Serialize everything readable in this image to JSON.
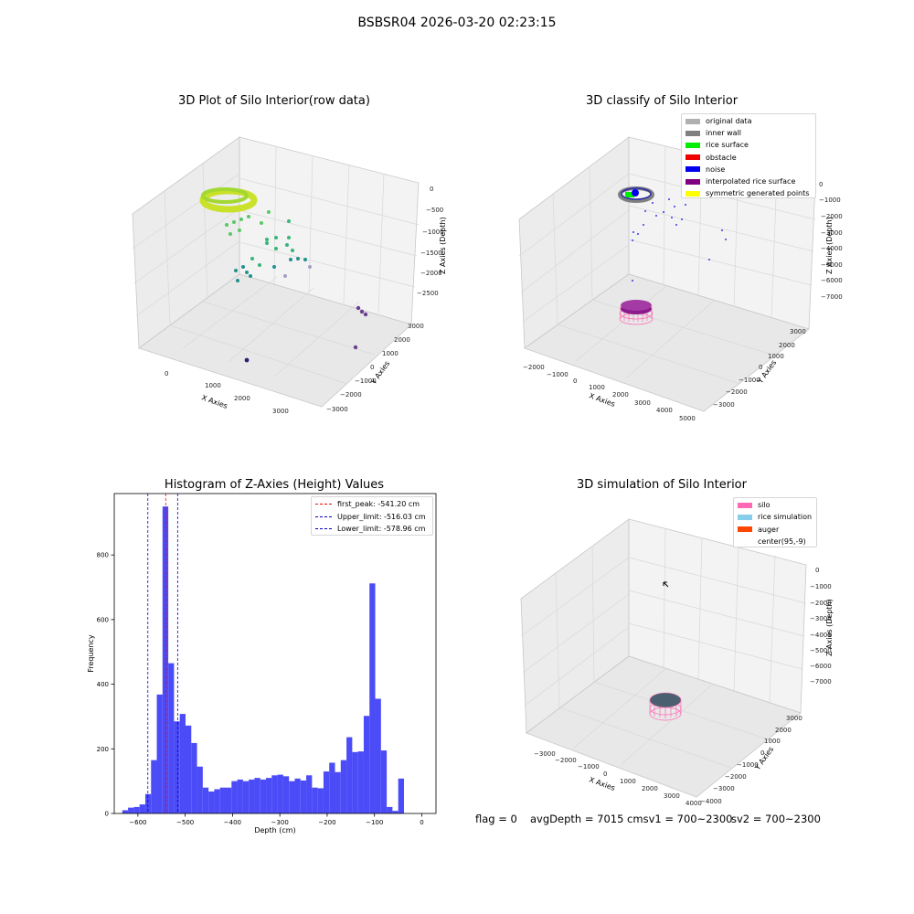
{
  "suptitle": "BSBSR04 2026-03-20 02:23:15",
  "status": {
    "flag": "flag = 0",
    "avg": "avgDepth = 7015 cmsv1 = 700~2300",
    "sv2": "sv2 = 700~2300"
  },
  "colors": {
    "hist_bar": "#4b4bf7",
    "first_peak": "#ff0000",
    "limit_lines": "#0000cc",
    "pane": "#f2f2f2"
  },
  "chart_data": [
    {
      "type": "scatter",
      "title": "3D Plot of Silo Interior(row data)",
      "xlabel": "X Axies",
      "ylabel": "Y Axies",
      "zlabel": "Z Axies (Depth)",
      "xticks": [
        "0",
        "1000",
        "2000",
        "3000"
      ],
      "yticks": [
        "3000",
        "2000",
        "1000",
        "0",
        "−1000",
        "−2000",
        "−3000"
      ],
      "zticks": [
        "0",
        "−500",
        "−1000",
        "−1500",
        "−2000",
        "−2500"
      ],
      "colormap": "viridis",
      "grid": true
    },
    {
      "type": "scatter",
      "title": "3D classify of Silo Interior",
      "xlabel": "X Axies",
      "ylabel": "Y Axies",
      "zlabel": "Z Axies (Depth)",
      "xticks": [
        "−2000",
        "−1000",
        "0",
        "1000",
        "2000",
        "3000",
        "4000",
        "5000"
      ],
      "yticks": [
        "3000",
        "2000",
        "1000",
        "0",
        "−1000",
        "−2000",
        "−3000"
      ],
      "zticks": [
        "0",
        "−1000",
        "−2000",
        "−3000",
        "−4000",
        "−5000",
        "−6000",
        "−7000"
      ],
      "legend_position": "top-right",
      "legend": [
        {
          "label": "original data",
          "color": "#b0b0b0"
        },
        {
          "label": "inner wall",
          "color": "#808080"
        },
        {
          "label": "rice surface",
          "color": "#00ee00"
        },
        {
          "label": "obstacle",
          "color": "#ee0000"
        },
        {
          "label": "noise",
          "color": "#0000ee"
        },
        {
          "label": "interpolated rice surface",
          "color": "#800080"
        },
        {
          "label": "symmetric generated points",
          "color": "#ffff00"
        }
      ],
      "grid": true
    },
    {
      "type": "bar",
      "title": "Histogram of Z-Axies (Height) Values",
      "xlabel": "Depth (cm)",
      "ylabel": "Frequency",
      "xlim": [
        -650,
        30
      ],
      "ylim": [
        0,
        990
      ],
      "xticks": [
        -600,
        -500,
        -400,
        -300,
        -200,
        -100,
        0
      ],
      "yticks": [
        0,
        200,
        400,
        600,
        800
      ],
      "bin_start": -633,
      "bin_width": 12.15,
      "values": [
        10,
        18,
        20,
        28,
        60,
        165,
        368,
        950,
        465,
        285,
        308,
        272,
        218,
        145,
        80,
        68,
        75,
        80,
        80,
        100,
        105,
        100,
        105,
        110,
        105,
        110,
        118,
        120,
        115,
        100,
        108,
        102,
        118,
        80,
        78,
        130,
        157,
        128,
        165,
        236,
        190,
        192,
        302,
        712,
        355,
        195,
        20,
        8,
        108
      ],
      "lines": [
        {
          "label": "first_peak: -541.20 cm",
          "x": -541.2,
          "color": "#ff0000"
        },
        {
          "label": "Upper_limit: -516.03 cm",
          "x": -516.03,
          "color": "#0000cc"
        },
        {
          "label": "Lower_limit: -578.96 cm",
          "x": -578.96,
          "color": "#0000cc"
        }
      ],
      "legend_position": "top-right"
    },
    {
      "type": "scatter",
      "title": "3D simulation of Silo Interior",
      "xlabel": "X Axies",
      "ylabel": "Y Axies",
      "zlabel": "Z Axies (Depth)",
      "xticks": [
        "−3000",
        "−2000",
        "−1000",
        "0",
        "1000",
        "2000",
        "3000",
        "4000"
      ],
      "yticks": [
        "3000",
        "2000",
        "1000",
        "0",
        "−1000",
        "−2000",
        "−3000",
        "−4000"
      ],
      "zticks": [
        "0",
        "−1000",
        "−2000",
        "−3000",
        "−4000",
        "−5000",
        "−6000",
        "−7000"
      ],
      "legend_position": "top-right",
      "legend": [
        {
          "label": "silo",
          "color": "#ff69b4"
        },
        {
          "label": "rice simulation",
          "color": "#87ceeb"
        },
        {
          "label": "auger",
          "color": "#ff4500"
        },
        {
          "label": "center(95,-9)",
          "color": ""
        }
      ],
      "grid": true
    }
  ]
}
